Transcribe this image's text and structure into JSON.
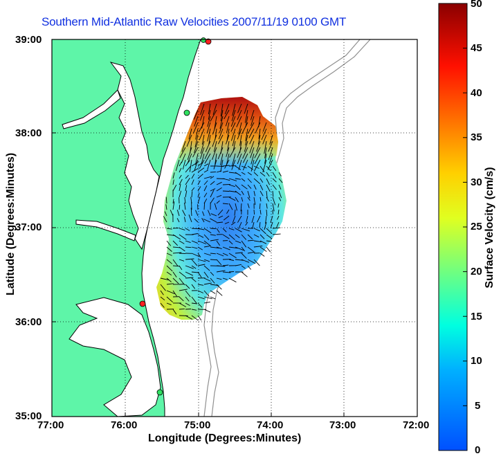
{
  "title": "Southern Mid-Atlantic Raw Velocities 2007/11/19 0100 GMT",
  "x_axis": {
    "label": "Longitude (Degrees:Minutes)",
    "ticks": [
      "77:00",
      "76:00",
      "75:00",
      "74:00",
      "73:00",
      "72:00"
    ]
  },
  "y_axis": {
    "label": "Latitude (Degrees:Minutes)",
    "ticks": [
      "39:00",
      "38:00",
      "37:00",
      "36:00",
      "35:00"
    ]
  },
  "colorbar": {
    "label": "Surface Velocity (cm/s)",
    "ticks": [
      "50",
      "45",
      "40",
      "35",
      "30",
      "25",
      "20",
      "15",
      "10",
      "5",
      "0"
    ],
    "min": 0,
    "max": 50,
    "colors": [
      "#0050ff",
      "#00b0ff",
      "#00ffe0",
      "#70ff80",
      "#e0ff20",
      "#ffd000",
      "#ff7000",
      "#ff1000",
      "#8a0000"
    ]
  },
  "map": {
    "land_color": "#5ef5a8",
    "ocean_color": "#ffffff",
    "bathymetry_color": "#909090",
    "grid": "dotted"
  }
}
